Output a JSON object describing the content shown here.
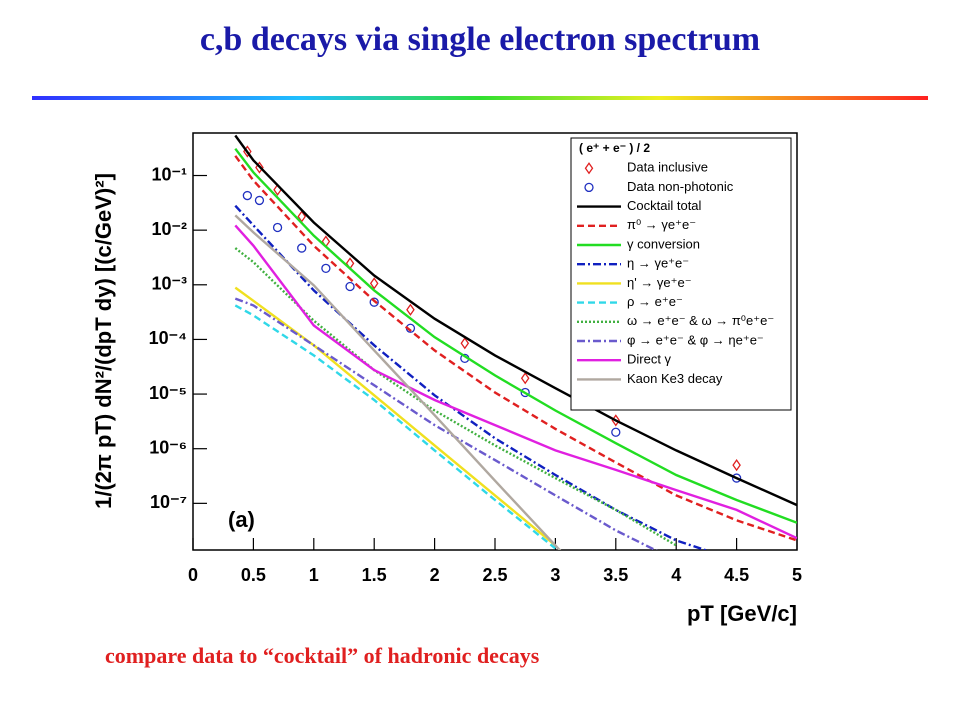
{
  "slide": {
    "title": "c,b decays via single electron spectrum",
    "caption": "compare data to “cocktail” of hadronic decays"
  },
  "chart_data": {
    "type": "line",
    "annotation": "(a)",
    "x_label": "pT [GeV/c]",
    "y_label": "1/(2π pT) dN²/(dpT dy) [(c/GeV)²]",
    "legend_title": "( e⁺ + e⁻ ) / 2",
    "legend_position": "upper right",
    "log_y": true,
    "xlim": [
      0,
      5
    ],
    "ylim": [
      1.4e-08,
      0.6
    ],
    "xticks": [
      0,
      0.5,
      1,
      1.5,
      2,
      2.5,
      3,
      3.5,
      4,
      4.5,
      5
    ],
    "yticks": [
      {
        "value": 1e-07,
        "label": "10⁻⁷"
      },
      {
        "value": 1e-06,
        "label": "10⁻⁶"
      },
      {
        "value": 1e-05,
        "label": "10⁻⁵"
      },
      {
        "value": 0.0001,
        "label": "10⁻⁴"
      },
      {
        "value": 0.001,
        "label": "10⁻³"
      },
      {
        "value": 0.01,
        "label": "10⁻²"
      },
      {
        "value": 0.1,
        "label": "10⁻¹"
      }
    ],
    "data_x": [
      0.45,
      0.55,
      0.7,
      0.9,
      1.1,
      1.3,
      1.5,
      1.8,
      2.25,
      2.75,
      3.5,
      4.5
    ],
    "line_x": [
      0.35,
      0.5,
      1,
      1.5,
      2,
      2.5,
      3,
      3.5,
      4,
      4.5,
      5
    ],
    "series": [
      {
        "name": "Data inclusive",
        "kind": "scatter",
        "marker": "diamond",
        "color": "#e02020",
        "values": [
          0.275,
          0.14,
          0.055,
          0.0178,
          0.0062,
          0.00246,
          0.00106,
          0.00035,
          8.5e-05,
          1.95e-05,
          3.3e-06,
          5e-07
        ]
      },
      {
        "name": "Data non-photonic",
        "kind": "scatter",
        "marker": "circle",
        "color": "#2030c0",
        "values": [
          0.043,
          0.035,
          0.0112,
          0.0047,
          0.002,
          0.00093,
          0.00048,
          0.00016,
          4.5e-05,
          1.07e-05,
          2e-06,
          2.9e-07
        ]
      },
      {
        "name": "Cocktail total",
        "kind": "line",
        "dash": "solid",
        "color": "#000000",
        "values": [
          0.54,
          0.19,
          0.0138,
          0.00148,
          0.00024,
          5.1e-05,
          1.28e-05,
          3.3e-06,
          9.3e-07,
          2.9e-07,
          9.3e-08
        ]
      },
      {
        "name": "π⁰ → γe⁺e⁻",
        "kind": "line",
        "dash": "dashed",
        "color": "#e02020",
        "values": [
          0.23,
          0.081,
          0.0052,
          0.00051,
          6.3e-05,
          1.07e-05,
          2.3e-06,
          5.6e-07,
          1.4e-07,
          4.9e-08,
          2.1e-08
        ]
      },
      {
        "name": "γ conversion",
        "kind": "line",
        "dash": "solid",
        "color": "#22dd22",
        "values": [
          0.31,
          0.114,
          0.0079,
          0.00079,
          0.00011,
          2.2e-05,
          5e-06,
          1.26e-06,
          3.3e-07,
          1.15e-07,
          4.4e-08
        ]
      },
      {
        "name": "η → γe⁺e⁻",
        "kind": "line",
        "dash": "dashdot",
        "color": "#1020c0",
        "values": [
          0.028,
          0.0122,
          0.00079,
          7.8e-05,
          9.5e-06,
          1.55e-06,
          3.3e-07,
          7.6e-08,
          2.1e-08,
          9e-09,
          null
        ]
      },
      {
        "name": "η' → γe⁺e⁻",
        "kind": "line",
        "dash": "solid",
        "color": "#f0e020",
        "values": [
          0.00089,
          0.00051,
          7.8e-05,
          9.5e-06,
          1.15e-06,
          1.4e-07,
          1.7e-08,
          null,
          null,
          null,
          null
        ]
      },
      {
        "name": "ρ → e⁺e⁻",
        "kind": "line",
        "dash": "dashed",
        "color": "#30d8e8",
        "values": [
          0.00042,
          0.000275,
          5.1e-05,
          7.8e-06,
          9.3e-07,
          1.15e-07,
          1.5e-08,
          null,
          null,
          null,
          null
        ]
      },
      {
        "name": "ω → e⁺e⁻ & ω → π⁰e⁺e⁻",
        "kind": "line",
        "dash": "dotted",
        "color": "#40b040",
        "values": [
          0.0047,
          0.0026,
          0.00022,
          2.75e-05,
          5e-06,
          1.15e-06,
          2.9e-07,
          7.6e-08,
          1.7e-08,
          null,
          null
        ]
      },
      {
        "name": "φ → e⁺e⁻ & φ → ηe⁺e⁻",
        "kind": "line",
        "dash": "dashdot",
        "color": "#6a5acd",
        "values": [
          0.00056,
          0.00042,
          7.8e-05,
          1.45e-05,
          2.7e-06,
          6.2e-07,
          1.4e-07,
          3.2e-08,
          9e-09,
          null,
          null
        ]
      },
      {
        "name": "Direct γ",
        "kind": "line",
        "dash": "solid",
        "color": "#e020e0",
        "values": [
          0.0122,
          0.0052,
          0.00018,
          2.75e-05,
          7.8e-06,
          2.7e-06,
          9.3e-07,
          4.1e-07,
          1.75e-07,
          7.6e-08,
          2.3e-08
        ]
      },
      {
        "name": "Kaon Ke3 decay",
        "kind": "line",
        "dash": "solid",
        "color": "#b0a8a0",
        "values": [
          0.0186,
          0.0091,
          0.00098,
          6.3e-05,
          4.1e-06,
          2.6e-07,
          1.7e-08,
          1.1e-09,
          null,
          null,
          null
        ]
      }
    ]
  }
}
